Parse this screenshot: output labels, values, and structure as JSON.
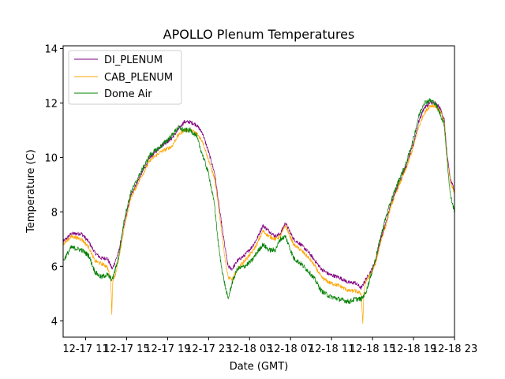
{
  "chart_data": {
    "type": "line",
    "title": "APOLLO Plenum Temperatures",
    "xlabel": "Date (GMT)",
    "ylabel": "Temperature (C)",
    "x_unit": "hours since 12-17 08:00 GMT",
    "xlim": [
      0.8,
      39.0
    ],
    "ylim": [
      3.4,
      14.1
    ],
    "x_ticks": [
      {
        "value": 3,
        "label": "12-17 11"
      },
      {
        "value": 7,
        "label": "12-17 15"
      },
      {
        "value": 11,
        "label": "12-17 19"
      },
      {
        "value": 15,
        "label": "12-17 23"
      },
      {
        "value": 19,
        "label": "12-18 03"
      },
      {
        "value": 23,
        "label": "12-18 07"
      },
      {
        "value": 27,
        "label": "12-18 11"
      },
      {
        "value": 31,
        "label": "12-18 15"
      },
      {
        "value": 35,
        "label": "12-18 19"
      },
      {
        "value": 39,
        "label": "12-18 23"
      }
    ],
    "y_ticks": [
      4,
      6,
      8,
      10,
      12,
      14
    ],
    "grid": false,
    "legend": {
      "position": "top-left"
    },
    "series": [
      {
        "name": "DI_PLENUM",
        "color": "#800080",
        "x": [
          0.8,
          1.6,
          2.6,
          3.3,
          3.9,
          4.5,
          5.1,
          5.6,
          6.2,
          6.8,
          7.4,
          8.3,
          9.3,
          10.3,
          11.4,
          12.0,
          12.6,
          13.2,
          13.8,
          14.4,
          15.0,
          15.6,
          16.1,
          16.6,
          16.9,
          17.3,
          17.8,
          18.5,
          19.2,
          19.7,
          20.3,
          20.9,
          21.5,
          22.0,
          22.5,
          23.3,
          24.0,
          24.8,
          25.4,
          26.0,
          26.8,
          27.7,
          28.7,
          29.3,
          29.9,
          30.3,
          30.8,
          31.3,
          31.8,
          32.3,
          32.8,
          33.5,
          34.3,
          35.0,
          35.5,
          36.0,
          36.6,
          37.1,
          37.6,
          38.0,
          38.3,
          38.6,
          39.0
        ],
        "y": [
          6.9,
          7.2,
          7.2,
          6.9,
          6.5,
          6.3,
          6.3,
          5.9,
          6.5,
          7.6,
          8.6,
          9.3,
          10.0,
          10.4,
          10.7,
          11.0,
          11.3,
          11.3,
          11.2,
          10.9,
          10.2,
          9.4,
          8.0,
          6.7,
          6.0,
          5.9,
          6.2,
          6.4,
          6.7,
          7.0,
          7.5,
          7.3,
          7.1,
          7.2,
          7.6,
          7.0,
          6.8,
          6.5,
          6.2,
          5.9,
          5.7,
          5.6,
          5.4,
          5.4,
          5.2,
          5.5,
          5.8,
          6.2,
          7.0,
          7.6,
          8.3,
          9.0,
          9.7,
          10.5,
          11.3,
          11.8,
          12.0,
          12.0,
          11.8,
          11.4,
          10.0,
          9.2,
          8.8
        ],
        "noise": 0.07
      },
      {
        "name": "CAB_PLENUM",
        "color": "#FFA500",
        "x": [
          0.8,
          1.6,
          2.6,
          3.3,
          3.9,
          4.5,
          5.1,
          5.45,
          5.55,
          5.65,
          5.9,
          6.3,
          6.8,
          7.4,
          8.3,
          9.3,
          10.3,
          11.4,
          12.0,
          12.6,
          13.2,
          13.8,
          14.4,
          15.0,
          15.6,
          16.1,
          16.6,
          16.9,
          17.3,
          17.8,
          18.5,
          19.2,
          19.7,
          20.3,
          20.9,
          21.5,
          22.0,
          22.5,
          23.3,
          24.0,
          24.8,
          25.4,
          26.0,
          26.8,
          27.7,
          28.7,
          29.3,
          29.9,
          30.05,
          30.15,
          30.3,
          30.8,
          31.3,
          31.8,
          32.3,
          32.8,
          33.5,
          34.3,
          35.0,
          35.5,
          36.0,
          36.6,
          37.1,
          37.6,
          38.0,
          38.3,
          38.6,
          39.0
        ],
        "y": [
          6.8,
          7.1,
          7.0,
          6.7,
          6.2,
          6.1,
          6.0,
          5.5,
          4.3,
          5.5,
          5.7,
          6.4,
          7.5,
          8.5,
          9.2,
          9.9,
          10.2,
          10.4,
          10.8,
          11.0,
          11.0,
          10.9,
          10.6,
          9.9,
          9.2,
          7.8,
          6.3,
          5.6,
          5.5,
          5.9,
          6.2,
          6.5,
          6.8,
          7.3,
          7.1,
          7.0,
          7.1,
          7.5,
          6.8,
          6.6,
          6.3,
          6.0,
          5.6,
          5.4,
          5.3,
          5.1,
          5.1,
          5.0,
          3.9,
          5.0,
          5.4,
          5.7,
          6.1,
          6.9,
          7.5,
          8.2,
          8.9,
          9.6,
          10.4,
          11.1,
          11.6,
          11.9,
          11.9,
          11.7,
          11.3,
          9.9,
          9.1,
          8.7
        ],
        "noise": 0.07
      },
      {
        "name": "Dome Air",
        "color": "#008000",
        "x": [
          0.8,
          1.6,
          2.6,
          3.3,
          3.9,
          4.5,
          5.1,
          5.6,
          6.2,
          6.8,
          7.4,
          8.3,
          9.3,
          10.3,
          11.4,
          12.0,
          12.6,
          13.2,
          13.8,
          14.4,
          15.0,
          15.6,
          15.9,
          16.2,
          16.6,
          16.9,
          17.3,
          17.8,
          18.5,
          19.2,
          19.7,
          20.3,
          20.9,
          21.5,
          22.0,
          22.5,
          23.3,
          24.0,
          24.8,
          25.4,
          26.0,
          26.8,
          27.7,
          28.7,
          29.3,
          29.9,
          30.3,
          30.8,
          31.3,
          31.8,
          32.3,
          32.8,
          33.5,
          34.3,
          35.0,
          35.5,
          36.0,
          36.6,
          37.1,
          37.6,
          38.0,
          38.3,
          38.6,
          39.0
        ],
        "y": [
          6.2,
          6.7,
          6.6,
          6.4,
          5.8,
          5.6,
          5.7,
          5.5,
          6.3,
          7.8,
          8.7,
          9.4,
          10.1,
          10.4,
          10.8,
          11.1,
          11.0,
          11.0,
          10.8,
          10.1,
          9.4,
          8.2,
          7.0,
          6.1,
          5.3,
          4.8,
          5.4,
          5.9,
          6.0,
          6.2,
          6.5,
          6.8,
          6.6,
          6.6,
          7.0,
          7.1,
          6.3,
          6.1,
          5.8,
          5.5,
          5.1,
          4.9,
          4.8,
          4.7,
          4.8,
          4.8,
          5.0,
          5.6,
          6.3,
          7.1,
          7.8,
          8.4,
          9.1,
          9.8,
          10.7,
          11.5,
          12.0,
          12.1,
          12.0,
          11.6,
          11.2,
          9.8,
          8.6,
          8.0
        ],
        "noise": 0.09
      }
    ]
  }
}
